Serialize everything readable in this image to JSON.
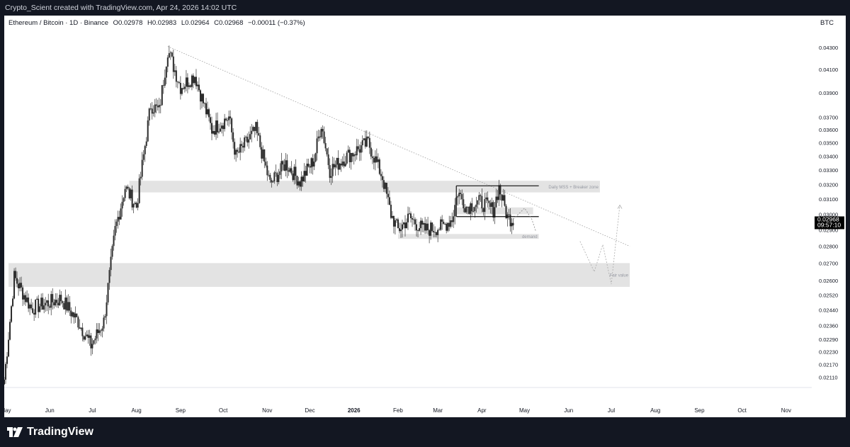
{
  "header": {
    "attribution": "Crypto_Scient created with TradingView.com, Apr 24, 2026 14:02 UTC"
  },
  "legend": {
    "symbol": "Ethereum / Bitcoin · 1D · Binance",
    "open_label": "O",
    "open": "0.02978",
    "high_label": "H",
    "high": "0.02983",
    "low_label": "L",
    "low": "0.02964",
    "close_label": "C",
    "close": "0.02968",
    "change": "−0.00011 (−0.37%)",
    "currency": "BTC"
  },
  "last_price": {
    "price": "0.02968",
    "countdown": "09:57:10"
  },
  "footer": {
    "brand": "TradingView"
  },
  "colors": {
    "up": "#26a69a",
    "down": "#ef5350",
    "candle_body": "#2b2b2b",
    "wick": "#333333",
    "zone": "#e3e3e3",
    "trendline": "#9e9e9e",
    "price_label_bg": "#000000"
  },
  "chart_data": {
    "type": "candlestick",
    "title": "Ethereum / Bitcoin · 1D · Binance",
    "y_axis": {
      "ticks": [
        "0.04300",
        "0.04100",
        "0.03900",
        "0.03700",
        "0.03600",
        "0.03500",
        "0.03400",
        "0.03300",
        "0.03200",
        "0.03100",
        "0.03000",
        "0.02900",
        "0.02800",
        "0.02700",
        "0.02600",
        "0.02520",
        "0.02440",
        "0.02360",
        "0.02290",
        "0.02230",
        "0.02170",
        "0.02110"
      ],
      "scale": "log",
      "range": [
        0.0208,
        0.044
      ]
    },
    "x_axis": {
      "ticks": [
        "May",
        "Jun",
        "Jul",
        "Aug",
        "Sep",
        "Oct",
        "Nov",
        "Dec",
        "2026",
        "Feb",
        "Mar",
        "Apr",
        "May",
        "Jun",
        "Jul",
        "Aug",
        "Sep",
        "Oct",
        "Nov"
      ],
      "range": [
        "2025-05-01",
        "2026-11-20"
      ]
    },
    "key_points": [
      {
        "date": "2025-05-01",
        "price": 0.021
      },
      {
        "date": "2025-05-08",
        "price": 0.0262
      },
      {
        "date": "2025-05-20",
        "price": 0.0245
      },
      {
        "date": "2025-06-10",
        "price": 0.025
      },
      {
        "date": "2025-06-22",
        "price": 0.0238
      },
      {
        "date": "2025-07-01",
        "price": 0.0226
      },
      {
        "date": "2025-07-10",
        "price": 0.0238
      },
      {
        "date": "2025-07-18",
        "price": 0.029
      },
      {
        "date": "2025-07-25",
        "price": 0.0318
      },
      {
        "date": "2025-08-02",
        "price": 0.0305
      },
      {
        "date": "2025-08-12",
        "price": 0.038
      },
      {
        "date": "2025-08-18",
        "price": 0.0375
      },
      {
        "date": "2025-08-24",
        "price": 0.0428
      },
      {
        "date": "2025-09-02",
        "price": 0.0395
      },
      {
        "date": "2025-09-12",
        "price": 0.0405
      },
      {
        "date": "2025-09-24",
        "price": 0.036
      },
      {
        "date": "2025-10-06",
        "price": 0.037
      },
      {
        "date": "2025-10-11",
        "price": 0.034
      },
      {
        "date": "2025-10-25",
        "price": 0.036
      },
      {
        "date": "2025-11-04",
        "price": 0.032
      },
      {
        "date": "2025-11-15",
        "price": 0.0335
      },
      {
        "date": "2025-11-25",
        "price": 0.0322
      },
      {
        "date": "2025-12-05",
        "price": 0.0338
      },
      {
        "date": "2025-12-10",
        "price": 0.0365
      },
      {
        "date": "2025-12-16",
        "price": 0.033
      },
      {
        "date": "2025-12-28",
        "price": 0.034
      },
      {
        "date": "2026-01-12",
        "price": 0.035
      },
      {
        "date": "2026-01-22",
        "price": 0.0325
      },
      {
        "date": "2026-01-28",
        "price": 0.03
      },
      {
        "date": "2026-02-02",
        "price": 0.029
      },
      {
        "date": "2026-02-10",
        "price": 0.0298
      },
      {
        "date": "2026-02-20",
        "price": 0.029
      },
      {
        "date": "2026-03-05",
        "price": 0.0292
      },
      {
        "date": "2026-03-12",
        "price": 0.0297
      },
      {
        "date": "2026-03-16",
        "price": 0.0315
      },
      {
        "date": "2026-03-22",
        "price": 0.0305
      },
      {
        "date": "2026-04-01",
        "price": 0.0308
      },
      {
        "date": "2026-04-10",
        "price": 0.0303
      },
      {
        "date": "2026-04-14",
        "price": 0.0318
      },
      {
        "date": "2026-04-20",
        "price": 0.0298
      },
      {
        "date": "2026-04-24",
        "price": 0.02968
      }
    ],
    "zones": [
      {
        "label": "Daily MSS + Breaker zone",
        "from_date": "2025-07-28",
        "to_date": "2026-06-24",
        "low": 0.03145,
        "high": 0.03225
      },
      {
        "label": "",
        "from_date": "2026-03-15",
        "to_date": "2026-05-08",
        "low": 0.03,
        "high": 0.03045
      },
      {
        "label": "demand",
        "from_date": "2026-02-02",
        "to_date": "2026-05-12",
        "low": 0.02845,
        "high": 0.02875
      },
      {
        "label": "Fair value",
        "from_date": "2025-05-04",
        "to_date": "2026-07-15",
        "low": 0.02565,
        "high": 0.027
      }
    ],
    "annotations": {
      "trendline": {
        "from": [
          "2025-08-24",
          0.0431
        ],
        "to": [
          "2026-07-15",
          0.028
        ]
      },
      "range_box": {
        "from_date": "2026-03-15",
        "to_date": "2026-05-12",
        "top": 0.0319,
        "bottom": 0.02985
      },
      "projection_down": [
        [
          "2026-04-24",
          0.02968
        ],
        [
          "2026-05-02",
          0.0304
        ],
        [
          "2026-05-07",
          0.0297
        ],
        [
          "2026-05-10",
          0.0289
        ]
      ],
      "projection_path": [
        [
          "2026-06-10",
          0.0283
        ],
        [
          "2026-06-20",
          0.0265
        ],
        [
          "2026-06-26",
          0.0281
        ],
        [
          "2026-07-02",
          0.0258
        ],
        [
          "2026-07-08",
          0.0306
        ]
      ]
    }
  }
}
